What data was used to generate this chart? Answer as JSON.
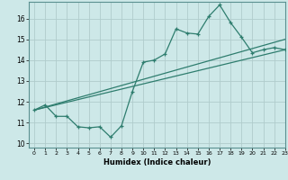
{
  "title": "",
  "xlabel": "Humidex (Indice chaleur)",
  "ylabel": "",
  "bg_color": "#cde8e8",
  "grid_color": "#b0cccc",
  "line_color": "#2e7d6e",
  "xlim": [
    -0.5,
    23
  ],
  "ylim": [
    9.8,
    16.8
  ],
  "xticks": [
    0,
    1,
    2,
    3,
    4,
    5,
    6,
    7,
    8,
    9,
    10,
    11,
    12,
    13,
    14,
    15,
    16,
    17,
    18,
    19,
    20,
    21,
    22,
    23
  ],
  "yticks": [
    10,
    11,
    12,
    13,
    14,
    15,
    16
  ],
  "line1_x": [
    0,
    1,
    2,
    3,
    4,
    5,
    6,
    7,
    8,
    9,
    10,
    11,
    12,
    13,
    14,
    15,
    16,
    17,
    18,
    19,
    20,
    21,
    22,
    23
  ],
  "line1_y": [
    11.6,
    11.85,
    11.3,
    11.3,
    10.8,
    10.75,
    10.8,
    10.3,
    10.85,
    12.5,
    13.9,
    14.0,
    14.3,
    15.5,
    15.3,
    15.25,
    16.1,
    16.65,
    15.8,
    15.1,
    14.35,
    14.5,
    14.6,
    14.5
  ],
  "line2_x": [
    0,
    23
  ],
  "line2_y": [
    11.6,
    15.0
  ],
  "line3_x": [
    0,
    23
  ],
  "line3_y": [
    11.6,
    14.5
  ]
}
